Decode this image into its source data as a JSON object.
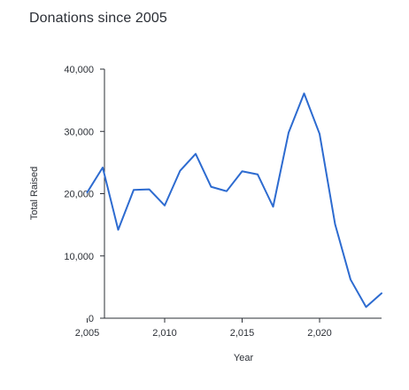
{
  "chart_data": {
    "type": "line",
    "title": "Donations since 2005",
    "xlabel": "Year",
    "ylabel": "Total Raised",
    "x_ticks": [
      2005,
      2010,
      2015,
      2020
    ],
    "x_tick_labels": [
      "2,005",
      "2,010",
      "2,015",
      "2,020"
    ],
    "y_ticks": [
      0,
      10000,
      20000,
      30000,
      40000
    ],
    "y_tick_labels": [
      "0",
      "10,000",
      "20,000",
      "30,000",
      "40,000"
    ],
    "xlim": [
      2004,
      2024
    ],
    "ylim": [
      0,
      40000
    ],
    "grid": false,
    "legend": "none",
    "line_color": "#2d6bd0",
    "series": [
      {
        "x": [
          2005,
          2006,
          2007,
          2008,
          2009,
          2010,
          2011,
          2012,
          2013,
          2014,
          2015,
          2016,
          2017,
          2018,
          2019,
          2020,
          2021,
          2022,
          2023,
          2024
        ],
        "values": [
          20200,
          24200,
          14200,
          20600,
          20700,
          18100,
          23700,
          26400,
          21100,
          20400,
          23600,
          23100,
          17900,
          29800,
          36100,
          29600,
          15100,
          6200,
          1800,
          4000
        ]
      }
    ]
  }
}
